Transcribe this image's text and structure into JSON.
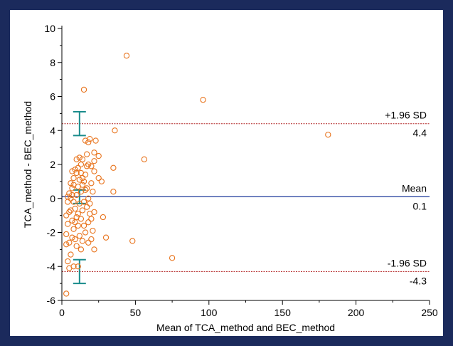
{
  "colors": {
    "background_border": "#1b2a5c",
    "panel": "#ffffff",
    "point": "#e8731c",
    "mean_line": "#1f3a9c",
    "limit_line": "#b22222",
    "ci_bar": "#1a8c8c",
    "axis": "#000000"
  },
  "chart_data": {
    "type": "scatter",
    "title": "",
    "xlabel": "Mean of TCA_method and BEC_method",
    "ylabel": "TCA_method - BEC_method",
    "xlim": [
      0,
      250
    ],
    "ylim": [
      -6,
      10
    ],
    "x_ticks": [
      0,
      50,
      100,
      150,
      200,
      250
    ],
    "y_ticks": [
      -6,
      -4,
      -2,
      0,
      2,
      4,
      6,
      8,
      10
    ],
    "x_tick_labels": [
      "0",
      "50",
      "100",
      "150",
      "200",
      "250"
    ],
    "y_tick_labels": [
      "-6",
      "-4",
      "-2",
      "0",
      "2",
      "4",
      "6",
      "8",
      "10"
    ],
    "grid": false,
    "reference_lines": [
      {
        "name": "+1.96 SD",
        "value_label": "4.4",
        "y": 4.4,
        "style": "dashed",
        "color": "#b22222"
      },
      {
        "name": "Mean",
        "value_label": "0.1",
        "y": 0.1,
        "style": "solid",
        "color": "#1f3a9c"
      },
      {
        "name": "-1.96 SD",
        "value_label": "-4.3",
        "y": -4.3,
        "style": "dashed",
        "color": "#b22222"
      }
    ],
    "confidence_intervals": [
      {
        "x": 12,
        "low": 3.7,
        "high": 5.1
      },
      {
        "x": 12,
        "low": -0.3,
        "high": 0.5
      },
      {
        "x": 12,
        "low": -5.0,
        "high": -3.6
      }
    ],
    "points": [
      [
        44,
        8.4
      ],
      [
        96,
        5.8
      ],
      [
        15,
        6.4
      ],
      [
        181,
        3.75
      ],
      [
        36,
        4.0
      ],
      [
        56,
        2.3
      ],
      [
        75,
        -3.5
      ],
      [
        48,
        -2.5
      ],
      [
        3,
        -5.6
      ],
      [
        35,
        0.4
      ],
      [
        35,
        1.8
      ],
      [
        30,
        -2.3
      ],
      [
        28,
        -1.1
      ],
      [
        25,
        1.2
      ],
      [
        27,
        1.0
      ],
      [
        25,
        2.5
      ],
      [
        23,
        3.4
      ],
      [
        22,
        2.7
      ],
      [
        22,
        2.2
      ],
      [
        20,
        1.9
      ],
      [
        19,
        3.5
      ],
      [
        18,
        3.3
      ],
      [
        17,
        2.6
      ],
      [
        22,
        1.6
      ],
      [
        20,
        0.9
      ],
      [
        22,
        -0.8
      ],
      [
        21,
        -1.9
      ],
      [
        20,
        -2.4
      ],
      [
        22,
        -3.0
      ],
      [
        18,
        -2.6
      ],
      [
        16,
        -2.0
      ],
      [
        15,
        -1.6
      ],
      [
        18,
        -1.4
      ],
      [
        19,
        -0.9
      ],
      [
        17,
        -0.5
      ],
      [
        16,
        0.5
      ],
      [
        14,
        1.2
      ],
      [
        13,
        2.0
      ],
      [
        12,
        2.4
      ],
      [
        11,
        1.8
      ],
      [
        10,
        1.5
      ],
      [
        10,
        2.3
      ],
      [
        9,
        1.7
      ],
      [
        8,
        1.2
      ],
      [
        7,
        0.6
      ],
      [
        6,
        0.9
      ],
      [
        5,
        0.3
      ],
      [
        4,
        -0.2
      ],
      [
        3,
        -1.0
      ],
      [
        4,
        -1.5
      ],
      [
        3,
        -2.1
      ],
      [
        5,
        -2.6
      ],
      [
        3,
        -2.7
      ],
      [
        4,
        -3.7
      ],
      [
        5,
        -4.1
      ],
      [
        8,
        -4.0
      ],
      [
        11,
        -4.0
      ],
      [
        13,
        -3.0
      ],
      [
        14,
        -2.5
      ],
      [
        12,
        -2.2
      ],
      [
        11,
        -1.6
      ],
      [
        10,
        -1.1
      ],
      [
        9,
        -0.6
      ],
      [
        8,
        -0.2
      ],
      [
        7,
        0.2
      ],
      [
        6,
        -0.7
      ],
      [
        7,
        -1.3
      ],
      [
        8,
        -1.8
      ],
      [
        9,
        -2.4
      ],
      [
        10,
        -2.8
      ],
      [
        6,
        -3.3
      ],
      [
        7,
        -2.3
      ],
      [
        12,
        -0.3
      ],
      [
        13,
        0.4
      ],
      [
        14,
        0.8
      ],
      [
        15,
        1.0
      ],
      [
        16,
        1.4
      ],
      [
        17,
        0.6
      ],
      [
        18,
        0.0
      ],
      [
        19,
        -0.3
      ],
      [
        15,
        -0.2
      ],
      [
        14,
        -0.7
      ],
      [
        13,
        -1.2
      ],
      [
        12,
        1.1
      ],
      [
        11,
        0.7
      ],
      [
        10,
        0.2
      ],
      [
        9,
        -1.4
      ],
      [
        8,
        0.8
      ],
      [
        7,
        1.6
      ],
      [
        6,
        0.0
      ],
      [
        5,
        -0.8
      ],
      [
        4,
        0.1
      ],
      [
        14,
        2.3
      ],
      [
        16,
        3.4
      ],
      [
        18,
        2.0
      ],
      [
        20,
        -1.2
      ],
      [
        21,
        0.4
      ],
      [
        17,
        1.9
      ],
      [
        13,
        1.5
      ],
      [
        11,
        -0.9
      ]
    ]
  }
}
